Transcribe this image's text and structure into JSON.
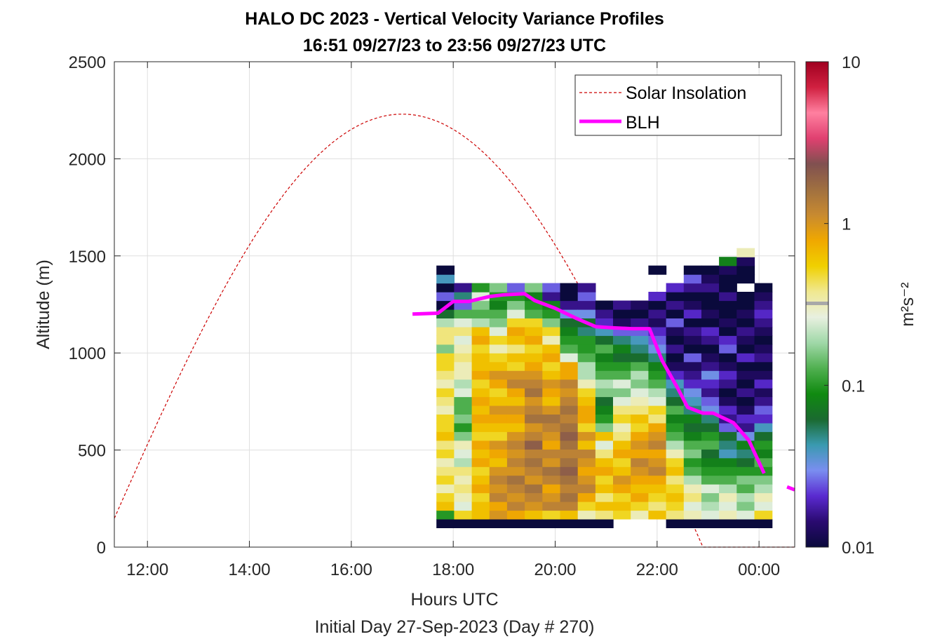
{
  "chart_data": {
    "type": "heatmap",
    "title": "HALO DC 2023 - Vertical Velocity Variance Profiles",
    "subtitle": "16:51 09/27/23 to 23:56 09/27/23  UTC",
    "xlabel": "Hours UTC",
    "footnote": "Initial Day 27-Sep-2023 (Day # 270)",
    "ylabel": "Altitude (m)",
    "x_unit": "hours UTC since 00:00 27-Sep-2023",
    "xlim": [
      11.35,
      24.7
    ],
    "ylim": [
      0,
      2500
    ],
    "x_ticks": [
      12,
      14,
      16,
      18,
      20,
      22,
      24
    ],
    "x_tick_labels": [
      "12:00",
      "14:00",
      "16:00",
      "18:00",
      "20:00",
      "22:00",
      "00:00"
    ],
    "y_ticks": [
      0,
      500,
      1000,
      1500,
      2000,
      2500
    ],
    "y_tick_labels": [
      "0",
      "500",
      "1000",
      "1500",
      "2000",
      "2500"
    ],
    "grid": true,
    "colorbar": {
      "label": "m²s⁻²",
      "scale": "log",
      "range": [
        0.01,
        10
      ],
      "ticks": [
        0.01,
        0.1,
        1,
        10
      ],
      "tick_labels": [
        "0.01",
        "0.1",
        "1",
        "10"
      ],
      "colors": [
        "#0a0a3c",
        "#2a0a70",
        "#5a2ad0",
        "#7a8ef0",
        "#3a9ab0",
        "#1a6a30",
        "#108a10",
        "#50b050",
        "#a0d8a8",
        "#e8f0e0",
        "#f0e890",
        "#f0d000",
        "#f0a800",
        "#c88a30",
        "#a07040",
        "#805050",
        "#e04070",
        "#ff80a0",
        "#d02040",
        "#a00020"
      ]
    },
    "legend": {
      "position": "top-right",
      "entries": [
        {
          "label": "Solar Insolation",
          "color": "#cc0000",
          "style": "dashed"
        },
        {
          "label": "BLH",
          "color": "#ff00ff",
          "style": "solid"
        }
      ]
    },
    "heatmap": {
      "x_start": 17.67,
      "x_step": 0.3466,
      "y_start": 100,
      "y_step": 45,
      "columns": [
        {
          "nrows": 30,
          "log_values": [
            -2,
            -1,
            -0.2,
            -0.3,
            -0.5,
            -0.3,
            -0.4,
            -0.5,
            -0.3,
            -0.4,
            -0.2,
            -0.3,
            -0.3,
            -0.5,
            -0.4,
            -0.3,
            -0.5,
            -0.4,
            -0.3,
            -0.3,
            -0.8,
            -0.4,
            -0.4,
            -0.7,
            -1.2,
            -2,
            -1.6,
            -2,
            -1.4,
            -2
          ]
        },
        {
          "nrows": 28,
          "log_values": [
            -2,
            -0.3,
            -0.6,
            -0.5,
            -0.4,
            -0.5,
            -0.4,
            -0.7,
            -0.6,
            -0.5,
            -0.8,
            -1,
            -0.8,
            -0.9,
            -0.9,
            -0.6,
            -0.7,
            -0.5,
            -0.5,
            -0.4,
            -0.5,
            -0.6,
            -0.4,
            -0.6,
            -0.9,
            -1.6,
            -1.3,
            -1.8
          ]
        },
        {
          "nrows": 28,
          "log_values": [
            -2,
            -0.2,
            -0.2,
            -0.3,
            -0.1,
            -0.2,
            -0.3,
            -0.1,
            -0.2,
            -0.1,
            -0.3,
            -0.2,
            -0.1,
            -0.2,
            -0.1,
            -0.2,
            -0.3,
            -0.1,
            -0.2,
            -0.2,
            -0.3,
            -0.1,
            -0.2,
            -0.7,
            -0.9,
            -0.8,
            -0.6,
            -1
          ]
        },
        {
          "nrows": 28,
          "log_values": [
            -2,
            0,
            -0.1,
            0.1,
            0,
            0.1,
            0,
            -0.2,
            -0.1,
            0,
            -0.3,
            -0.2,
            -0.1,
            0,
            -0.2,
            -0.3,
            -0.1,
            0,
            -0.2,
            -0.3,
            -0.5,
            -0.3,
            -0.6,
            -0.8,
            -0.9,
            -1.1,
            -1,
            -0.8
          ]
        },
        {
          "nrows": 28,
          "log_values": [
            -2,
            -0.1,
            0.1,
            0,
            0.1,
            0.2,
            0,
            0.1,
            0,
            0.1,
            0,
            -0.2,
            -0.1,
            0,
            -0.2,
            -0.1,
            0.1,
            0,
            -0.3,
            -0.2,
            -0.4,
            -0.2,
            -0.1,
            -0.3,
            -0.6,
            -0.8,
            -1,
            -1.6
          ]
        },
        {
          "nrows": 28,
          "log_values": [
            -2,
            -0.2,
            0,
            0.1,
            0.2,
            0,
            0.1,
            0.2,
            0.1,
            0.3,
            0.1,
            0,
            0.2,
            0.1,
            0,
            0.2,
            0.1,
            0,
            -0.1,
            -0.2,
            -0.3,
            -0.1,
            -0.2,
            -0.3,
            -0.9,
            -1,
            -1.1,
            -0.8
          ]
        },
        {
          "nrows": 28,
          "log_values": [
            -2,
            -0.3,
            0.1,
            0,
            -0.1,
            0.1,
            0.2,
            0,
            0.1,
            -0.1,
            0,
            0.1,
            0.2,
            0,
            -0.2,
            -0.1,
            0,
            -0.2,
            -0.3,
            -0.1,
            -0.2,
            -0.5,
            -0.3,
            -0.8,
            -1,
            -1.1,
            -1.8,
            -1.6
          ]
        },
        {
          "nrows": 28,
          "log_values": [
            -2,
            -0.2,
            0.1,
            0.2,
            0.1,
            0.2,
            0.3,
            0.2,
            0.1,
            0.2,
            0.3,
            0.2,
            0.1,
            0.2,
            0.1,
            0,
            0.1,
            -0.1,
            -0.1,
            -0.6,
            -0.9,
            -1,
            -1.1,
            -1.2,
            -1.5,
            -1.8,
            -2,
            -2
          ]
        },
        {
          "nrows": 28,
          "log_values": [
            -2,
            -0.5,
            -0.3,
            -0.1,
            0.1,
            0,
            -0.1,
            0,
            0.1,
            -0.2,
            0,
            -0.3,
            -0.1,
            -0.1,
            -0.2,
            -0.3,
            -0.5,
            -0.7,
            -0.7,
            -0.9,
            -1,
            -1,
            -1.3,
            -1.2,
            -1.5,
            -1.8,
            -1.6,
            -1.8
          ]
        },
        {
          "nrows": 26,
          "log_values": [
            -2,
            -0.4,
            -0.2,
            -0.4,
            -0.2,
            -0.3,
            -0.1,
            -0.2,
            -0.4,
            -0.6,
            -0.2,
            -0.8,
            -1,
            -1.1,
            -1.2,
            -0.8,
            -0.7,
            -0.9,
            -1,
            -1.1,
            -0.9,
            -1.2,
            -1.4,
            -1.7,
            -1.8,
            -2
          ]
        },
        {
          "nrows": 26,
          "log_values": [
            null,
            -0.3,
            -0.2,
            -0.3,
            -0.1,
            0,
            -0.2,
            -0.3,
            -0.1,
            -0.2,
            -0.4,
            -0.5,
            -0.3,
            -0.4,
            -0.6,
            -0.8,
            -0.6,
            -0.9,
            -1,
            -1.2,
            -1.1,
            -1.3,
            -1.6,
            -1.9,
            -2,
            -1.8
          ]
        },
        {
          "nrows": 26,
          "log_values": [
            null,
            -0.5,
            -0.3,
            -0.1,
            -0.2,
            -0.1,
            0,
            0.1,
            -0.1,
            0,
            -0.1,
            -0.3,
            -0.2,
            -0.4,
            -0.5,
            -0.6,
            -0.8,
            -0.7,
            -0.9,
            -1.2,
            -1.3,
            -1.4,
            -1.6,
            -1.8,
            -2,
            -1.9
          ]
        },
        {
          "nrows": 30,
          "log_values": [
            null,
            -0.2,
            -0.4,
            -0.3,
            -0.2,
            -0.1,
            0.1,
            0,
            -0.1,
            0.1,
            0,
            -0.1,
            -0.4,
            -0.3,
            -0.6,
            -0.7,
            -0.9,
            -1,
            -1.1,
            -1.3,
            -1.5,
            -1.6,
            -1.7,
            -1.9,
            -1.8,
            -2,
            -1.7,
            null,
            null,
            -2
          ]
        },
        {
          "nrows": 28,
          "log_values": [
            -2,
            -0.4,
            -0.3,
            -0.2,
            -0.3,
            -0.4,
            -0.2,
            -0.3,
            -0.5,
            -0.7,
            -0.9,
            -1,
            -1.1,
            -0.9,
            -1.2,
            -1.3,
            -1.4,
            -1.7,
            -1.9,
            -2,
            -1.8,
            -2,
            -1.9,
            -1.6,
            -2,
            -1.8,
            -2,
            -1.7
          ]
        },
        {
          "nrows": 30,
          "log_values": [
            -2,
            -0.5,
            -0.6,
            -0.4,
            -0.5,
            -0.7,
            -0.9,
            -1,
            -0.8,
            -0.9,
            -1.1,
            -1.2,
            -1.1,
            -1.3,
            -1.4,
            -1.5,
            -1.7,
            -1.8,
            -1.9,
            -1.6,
            -2,
            -1.9,
            -1.8,
            -2,
            -1.7,
            -1.9,
            -2,
            -1.8,
            -1.6,
            -2
          ]
        },
        {
          "nrows": 30,
          "log_values": [
            -2,
            -0.6,
            -0.7,
            -0.8,
            -0.6,
            -0.9,
            -1,
            -1.1,
            -1.2,
            -0.9,
            -1,
            -1.2,
            -1.3,
            -1.5,
            -1.6,
            -1.8,
            -1.7,
            -1.5,
            -1.8,
            -1.9,
            -2,
            -1.8,
            -1.7,
            -2,
            -1.9,
            -2,
            -2,
            -1.8,
            -1.9,
            -2
          ]
        },
        {
          "nrows": 31,
          "log_values": [
            -2,
            -0.5,
            -0.6,
            -0.5,
            -0.7,
            -0.9,
            -1,
            -1.1,
            -1.4,
            -1.3,
            -1.2,
            -1.6,
            -1.8,
            -1.7,
            -1.9,
            -2,
            -1.8,
            -1.7,
            -1.9,
            -2,
            -1.6,
            -1.7,
            -2,
            -1.9,
            -2,
            -2,
            -1.8,
            -2,
            -2,
            -1.9,
            -1.1
          ]
        },
        {
          "nrows": 32,
          "log_values": [
            -2,
            -0.6,
            -0.8,
            -0.7,
            -0.9,
            -0.8,
            -1,
            -1.2,
            -1.3,
            -1.1,
            -1.5,
            -1.8,
            -1.7,
            -1.9,
            -2,
            -1.8,
            -2,
            -1.9,
            -2,
            -1.7,
            -2,
            -1.9,
            -1.8,
            -2,
            -1.9,
            -2,
            -2,
            null,
            -2,
            -2,
            -1.9,
            -0.5
          ]
        },
        {
          "nrows": 28,
          "log_values": [
            -2,
            -0.3,
            -0.6,
            -0.5,
            -0.7,
            -0.8,
            -1,
            -0.9,
            -1.1,
            -1,
            -1.2,
            -1.4,
            -1.7,
            -1.6,
            -1.8,
            -1.9,
            -1.7,
            -1.9,
            -2,
            -1.8,
            -1.9,
            -2,
            -1.9,
            -1.8,
            -1.7,
            -1.8,
            -1.9,
            -2
          ]
        }
      ]
    },
    "blh": {
      "x": [
        17.2,
        17.7,
        18.0,
        18.3,
        18.7,
        19.0,
        19.4,
        19.6,
        20.0,
        20.4,
        20.8,
        21.1,
        21.5,
        21.85,
        22.1,
        22.4,
        22.6,
        22.9,
        23.1,
        23.5,
        23.8,
        24.1
      ],
      "y": [
        1200,
        1205,
        1265,
        1265,
        1290,
        1300,
        1305,
        1270,
        1230,
        1180,
        1135,
        1130,
        1125,
        1125,
        960,
        820,
        720,
        690,
        690,
        640,
        550,
        380
      ],
      "tail_x": [
        24.55,
        24.7
      ],
      "tail_y": [
        310,
        295
      ]
    },
    "solar": {
      "peak_hour": 17.0,
      "peak_value": 2230,
      "sunrise_hour": 11.1,
      "sunset_hour": 22.9
    }
  }
}
